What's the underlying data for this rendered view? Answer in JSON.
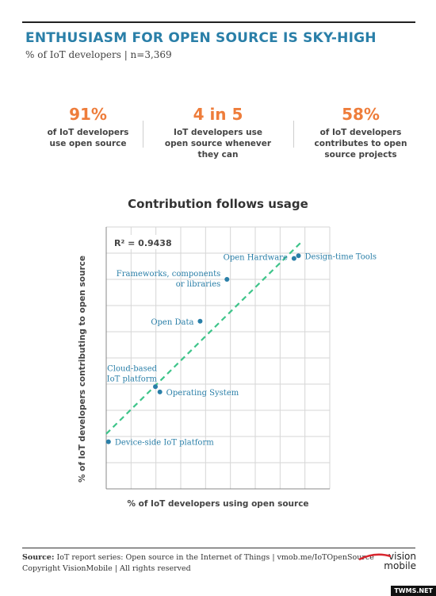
{
  "header": {
    "title": "Enthusiasm for open source is sky-high",
    "subtitle": "% of IoT developers | n=3,369"
  },
  "stats": [
    {
      "value": "91%",
      "desc": [
        "of IoT developers",
        "use open source"
      ]
    },
    {
      "value": "4 in 5",
      "desc": [
        "IoT developers use",
        "open source whenever",
        "they can"
      ]
    },
    {
      "value": "58%",
      "desc": [
        "of IoT developers",
        "contributes to open",
        "source projects"
      ]
    }
  ],
  "chart_data": {
    "type": "scatter",
    "title": "Contribution follows usage",
    "xlabel": "% of IoT developers using open source",
    "ylabel": "% of IoT developers contributing to open source",
    "annotation": "R² = 0.9438",
    "grid": true,
    "axis_ticks_shown": false,
    "xlim": [
      0,
      10
    ],
    "ylim": [
      0,
      10
    ],
    "points": [
      {
        "label": [
          "Device-side IoT platform"
        ],
        "x": 0.1,
        "y": 1.8
      },
      {
        "label": [
          "Cloud-based",
          "IoT platform"
        ],
        "x": 2.2,
        "y": 3.9
      },
      {
        "label": [
          "Operating System"
        ],
        "x": 2.4,
        "y": 3.7
      },
      {
        "label": [
          "Open Data"
        ],
        "x": 4.2,
        "y": 6.4
      },
      {
        "label": [
          "Frameworks, components",
          "or libraries"
        ],
        "x": 5.4,
        "y": 8.0
      },
      {
        "label": [
          "Open Hardware"
        ],
        "x": 8.4,
        "y": 8.8
      },
      {
        "label": [
          "Design-time Tools"
        ],
        "x": 8.6,
        "y": 8.9
      }
    ],
    "trendline": {
      "x": [
        0,
        8.7
      ],
      "y": [
        2.1,
        9.4
      ],
      "style": "dashed",
      "color": "#3ec48a"
    },
    "point_color": "#2a7fa8"
  },
  "footer": {
    "source_label": "Source:",
    "source_text": "IoT report series: Open source in the Internet of Things | vmob.me/IoTOpenSource",
    "copyright": "Copyright VisionMobile | All rights reserved",
    "logo_line1": "vision",
    "logo_line2": "mobile",
    "watermark": "TWMS.NET"
  }
}
